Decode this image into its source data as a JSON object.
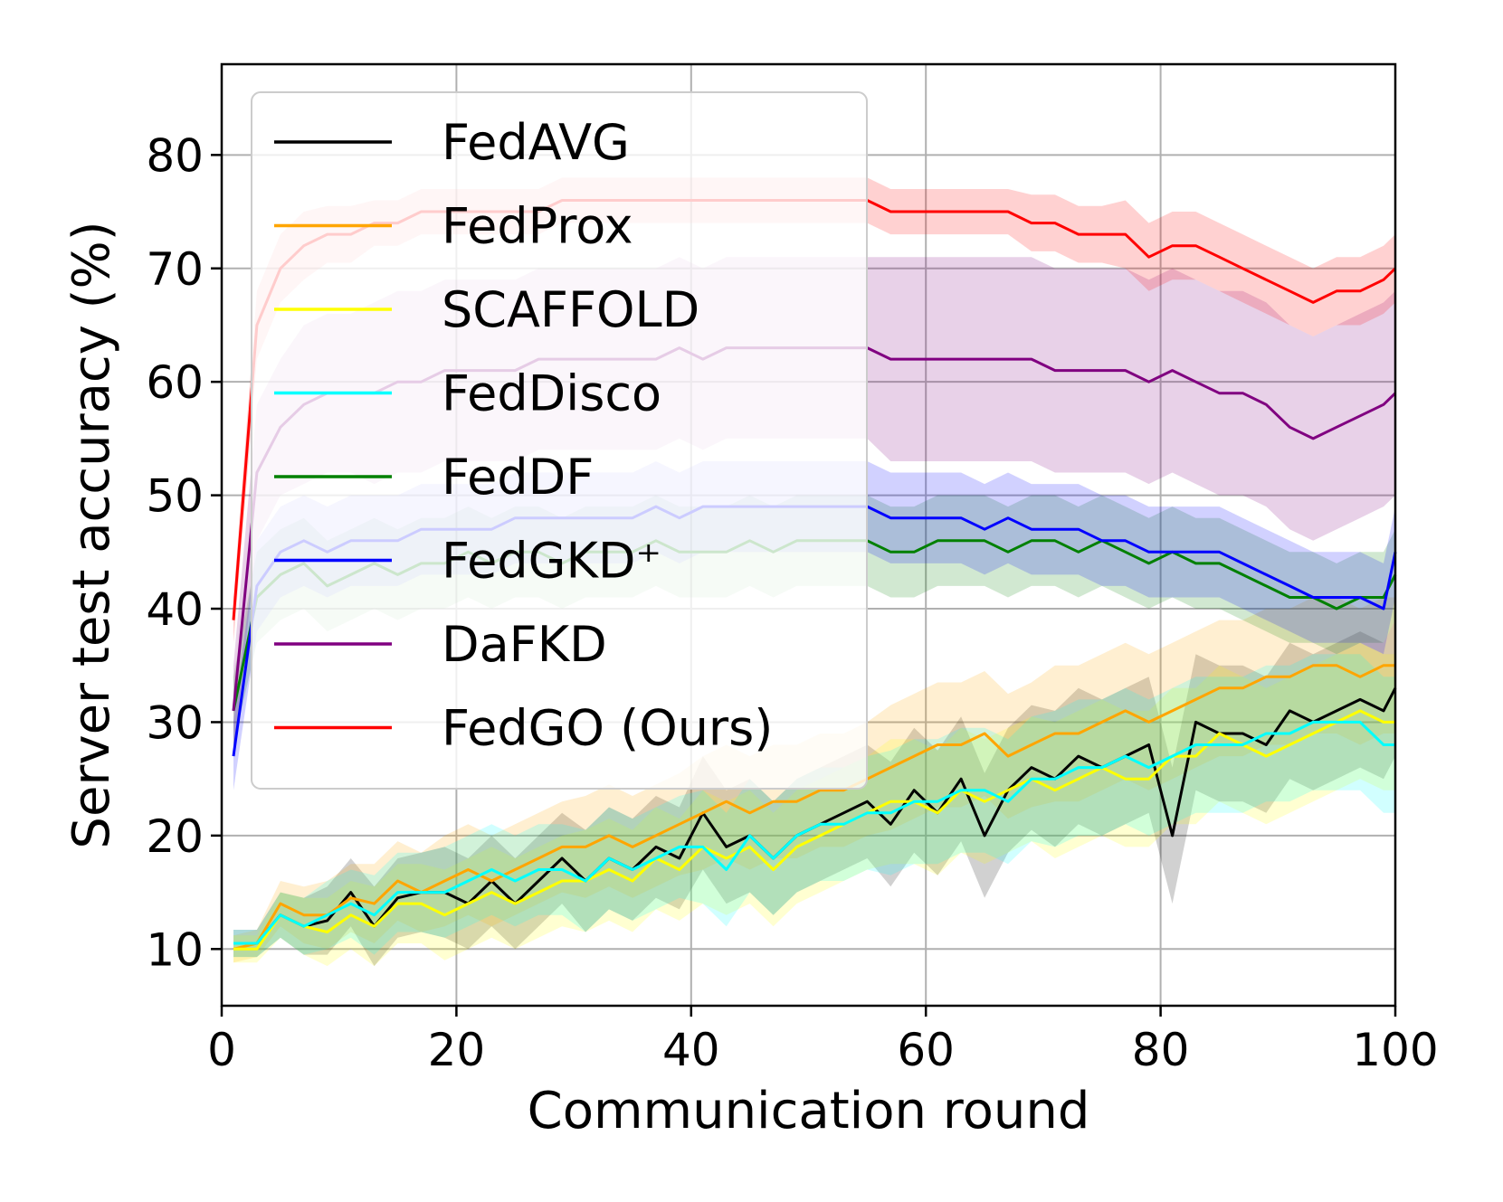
{
  "chart_data": {
    "type": "line",
    "xlabel": "Communication round",
    "ylabel": "Server test accuracy (%)",
    "xlim": [
      0,
      100
    ],
    "ylim": [
      5,
      88
    ],
    "xticks": [
      0,
      20,
      40,
      60,
      80,
      100
    ],
    "yticks": [
      10,
      20,
      30,
      40,
      50,
      60,
      70,
      80
    ],
    "xtick_labels": [
      "0",
      "20",
      "40",
      "60",
      "80",
      "100"
    ],
    "ytick_labels": [
      "10",
      "20",
      "30",
      "40",
      "50",
      "60",
      "70",
      "80"
    ],
    "grid": true,
    "legend_position": "upper-left",
    "shaded_bands": true,
    "x": [
      1,
      3,
      5,
      7,
      9,
      11,
      13,
      15,
      17,
      19,
      21,
      23,
      25,
      27,
      29,
      31,
      33,
      35,
      37,
      39,
      41,
      43,
      45,
      47,
      49,
      51,
      53,
      55,
      57,
      59,
      61,
      63,
      65,
      67,
      69,
      71,
      73,
      75,
      77,
      79,
      81,
      83,
      85,
      87,
      89,
      91,
      93,
      95,
      97,
      99,
      100
    ],
    "series": [
      {
        "name": "FedAVG",
        "color": "#000000",
        "values": [
          10.5,
          10.5,
          13,
          12,
          12.5,
          15,
          12,
          14.5,
          15,
          15,
          14,
          16,
          14,
          16,
          18,
          16,
          18,
          17,
          19,
          18,
          22,
          19,
          20,
          18,
          20,
          21,
          22,
          23,
          21,
          24,
          22,
          25,
          20,
          24,
          26,
          25,
          27,
          26,
          27,
          28,
          20,
          30,
          29,
          29,
          28,
          31,
          30,
          31,
          32,
          31,
          33
        ],
        "band": [
          1.2,
          1.2,
          2,
          2.5,
          3,
          3,
          3.5,
          3.5,
          3.5,
          4,
          4,
          4,
          4,
          4,
          4,
          4.5,
          4.5,
          4.5,
          4.5,
          4.5,
          5,
          5,
          5,
          5,
          5,
          5,
          5,
          5,
          5.5,
          5.5,
          5.5,
          5.5,
          5.5,
          5.5,
          5.5,
          6,
          6,
          6,
          6,
          6,
          6,
          6,
          6,
          6,
          6,
          6,
          6,
          6,
          6,
          6,
          6
        ]
      },
      {
        "name": "FedProx",
        "color": "#FFA500",
        "values": [
          10,
          10.5,
          14,
          13,
          13,
          14.5,
          14,
          16,
          15,
          16,
          17,
          16,
          17,
          18,
          19,
          19,
          20,
          19,
          20,
          21,
          22,
          23,
          22,
          23,
          23,
          24,
          24,
          25,
          26,
          27,
          28,
          28,
          29,
          27,
          28,
          29,
          29,
          30,
          31,
          30,
          31,
          32,
          33,
          33,
          34,
          34,
          35,
          35,
          34,
          35,
          35
        ],
        "band": [
          1.2,
          1.2,
          2,
          2.5,
          3,
          3,
          3.5,
          3.5,
          3.5,
          4,
          4,
          4,
          4,
          4,
          4,
          4.5,
          4.5,
          4.5,
          4.5,
          4.5,
          5,
          5,
          5,
          5,
          5,
          5,
          5,
          5,
          5.5,
          5.5,
          5.5,
          5.5,
          5.5,
          5.5,
          5.5,
          6,
          6,
          6,
          6,
          6,
          6,
          6,
          6,
          6,
          6,
          6,
          6,
          6,
          6,
          6,
          6
        ]
      },
      {
        "name": "SCAFFOLD",
        "color": "#FFFF00",
        "values": [
          10,
          10,
          13,
          12,
          11.5,
          13,
          12,
          14,
          14,
          13,
          14,
          15,
          14,
          15,
          16,
          16,
          17,
          16,
          18,
          17,
          19,
          18,
          19,
          17,
          19,
          20,
          21,
          22,
          23,
          23,
          22,
          24,
          23,
          24,
          25,
          24,
          25,
          26,
          25,
          25,
          27,
          27,
          29,
          28,
          27,
          28,
          29,
          30,
          31,
          30,
          30
        ],
        "band": [
          1.2,
          1.2,
          2,
          2.5,
          3,
          3,
          3.5,
          3.5,
          3.5,
          4,
          4,
          4,
          4,
          4,
          4,
          4.5,
          4.5,
          4.5,
          4.5,
          4.5,
          5,
          5,
          5,
          5,
          5,
          5,
          5,
          5,
          5.5,
          5.5,
          5.5,
          5.5,
          5.5,
          5.5,
          5.5,
          6,
          6,
          6,
          6,
          6,
          6,
          6,
          6,
          6,
          6,
          6,
          6,
          6,
          6,
          6,
          6
        ]
      },
      {
        "name": "FedDisco",
        "color": "#00FFFF",
        "values": [
          10.5,
          10.5,
          13,
          12,
          13,
          14,
          13,
          15,
          15,
          15,
          16,
          17,
          16,
          17,
          17,
          16,
          18,
          17,
          18,
          19,
          19,
          17,
          20,
          18,
          20,
          21,
          21,
          22,
          22,
          23,
          23,
          24,
          24,
          23,
          25,
          25,
          26,
          26,
          27,
          26,
          27,
          28,
          28,
          28,
          29,
          29,
          30,
          30,
          30,
          28,
          28
        ],
        "band": [
          1.2,
          1.2,
          2,
          2.5,
          3,
          3,
          3.5,
          3.5,
          3.5,
          4,
          4,
          4,
          4,
          4,
          4,
          4.5,
          4.5,
          4.5,
          4.5,
          4.5,
          5,
          5,
          5,
          5,
          5,
          5,
          5,
          5,
          5.5,
          5.5,
          5.5,
          5.5,
          5.5,
          5.5,
          5.5,
          6,
          6,
          6,
          6,
          6,
          6,
          6,
          6,
          6,
          6,
          6,
          6,
          6,
          6,
          6,
          6
        ]
      },
      {
        "name": "FedDF",
        "color": "#008000",
        "values": [
          31,
          41,
          43,
          44,
          42,
          43,
          44,
          43,
          44,
          44,
          45,
          44,
          45,
          45,
          44,
          45,
          45,
          45,
          46,
          45,
          45,
          45,
          46,
          45,
          46,
          46,
          46,
          46,
          45,
          45,
          46,
          46,
          46,
          45,
          46,
          46,
          45,
          46,
          45,
          44,
          45,
          44,
          44,
          43,
          42,
          41,
          41,
          40,
          41,
          41,
          43
        ],
        "band": [
          3,
          4,
          4,
          4,
          4,
          4,
          4,
          4,
          4,
          4,
          4,
          4,
          4,
          4,
          4,
          4,
          4,
          4,
          4,
          4,
          4,
          4,
          4,
          4,
          4,
          4,
          4,
          4,
          4,
          4,
          4,
          4,
          4,
          4,
          4,
          4,
          4,
          4,
          4,
          4,
          4,
          4,
          4,
          4,
          4,
          4,
          4,
          4,
          4,
          4,
          4
        ]
      },
      {
        "name": "FedGKD⁺",
        "color": "#0000FF",
        "values": [
          27,
          42,
          45,
          46,
          45,
          46,
          46,
          46,
          47,
          47,
          47,
          47,
          48,
          48,
          48,
          48,
          48,
          48,
          49,
          48,
          49,
          49,
          49,
          49,
          49,
          49,
          49,
          49,
          48,
          48,
          48,
          48,
          47,
          48,
          47,
          47,
          47,
          46,
          46,
          45,
          45,
          45,
          45,
          44,
          43,
          42,
          41,
          41,
          41,
          40,
          45
        ],
        "band": [
          3,
          4,
          4,
          4,
          4,
          4,
          4,
          4,
          4,
          4,
          4,
          4,
          4,
          4,
          4,
          4,
          4,
          4,
          4,
          4,
          4,
          4,
          4,
          4,
          4,
          4,
          4,
          4,
          4,
          4,
          4,
          4,
          4,
          4,
          4,
          4,
          4,
          4,
          4,
          4,
          4,
          4,
          4,
          4,
          4,
          4,
          4,
          4,
          4,
          4,
          4
        ]
      },
      {
        "name": "DaFKD",
        "color": "#800080",
        "values": [
          31,
          52,
          56,
          58,
          59,
          59,
          59,
          60,
          60,
          61,
          61,
          61,
          61,
          62,
          62,
          62,
          62,
          62,
          62,
          63,
          62,
          63,
          63,
          63,
          63,
          63,
          63,
          63,
          62,
          62,
          62,
          62,
          62,
          62,
          62,
          61,
          61,
          61,
          61,
          60,
          61,
          60,
          59,
          59,
          58,
          56,
          55,
          56,
          57,
          58,
          59
        ],
        "band": [
          4,
          6,
          6,
          7,
          7,
          7,
          8,
          8,
          8,
          8,
          8,
          8,
          8,
          8,
          8,
          8,
          8,
          8,
          8,
          8,
          8,
          8,
          8,
          8,
          8,
          8,
          8,
          8,
          9,
          9,
          9,
          9,
          9,
          9,
          9,
          9,
          9,
          9,
          9,
          9,
          9,
          9,
          9,
          9,
          9,
          9,
          9,
          9,
          9,
          9,
          9
        ]
      },
      {
        "name": "FedGO (Ours)",
        "color": "#FF0000",
        "values": [
          39,
          65,
          70,
          72,
          73,
          73,
          74,
          74,
          75,
          75,
          75,
          75,
          75,
          75,
          76,
          76,
          76,
          76,
          76,
          76,
          76,
          76,
          76,
          76,
          76,
          76,
          76,
          76,
          75,
          75,
          75,
          75,
          75,
          75,
          74,
          74,
          73,
          73,
          73,
          71,
          72,
          72,
          71,
          70,
          69,
          68,
          67,
          68,
          68,
          69,
          70
        ],
        "band": [
          2,
          3,
          3,
          3,
          2.5,
          2.5,
          2,
          2,
          2,
          2,
          2,
          2,
          2,
          2,
          2,
          2,
          2,
          2,
          2,
          2,
          2,
          2,
          2,
          2,
          2,
          2,
          2,
          2,
          2,
          2,
          2,
          2,
          2,
          2,
          2.5,
          2.5,
          2.5,
          2.5,
          3,
          3,
          3,
          3,
          3,
          3,
          3,
          3,
          3,
          3,
          3,
          3,
          3
        ]
      }
    ]
  }
}
